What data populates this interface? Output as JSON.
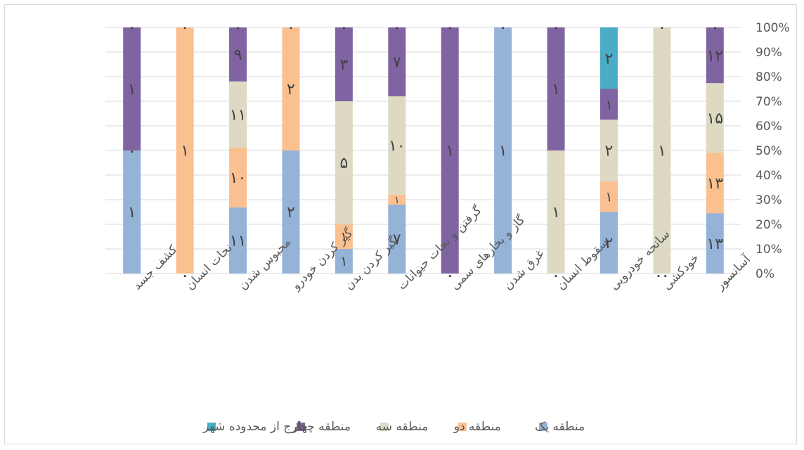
{
  "chart_data": {
    "type": "bar",
    "stacked": "percent",
    "categories": [
      "کشف جسد",
      "نجات انسان",
      "محبوس شدن",
      "گیر کردن خودرو",
      "گیر کردن بدن",
      "گرفتن و نجات حیوانات",
      "گاز و بخارهای سمی",
      "غرق شدن",
      "سقوط انسان",
      "سانحه خودرویی",
      "خودکشی",
      "آسانسور"
    ],
    "series": [
      {
        "name": "منطقه یک",
        "color": "#95b3d7",
        "values": [
          1,
          0,
          11,
          2,
          1,
          7,
          0,
          1,
          0,
          2,
          0,
          13
        ],
        "labels": [
          "۱",
          "۰",
          "۱۱",
          "۲",
          "۱",
          "۷",
          "۰",
          "۱",
          "۰",
          "۲",
          "۰",
          "۱۳"
        ]
      },
      {
        "name": "منطقه دو",
        "color": "#fac090",
        "values": [
          0,
          1,
          10,
          2,
          1,
          1,
          0,
          0,
          0,
          1,
          0,
          13
        ],
        "labels": [
          "",
          "۱",
          "۱۰",
          "۲",
          "۱",
          "۱",
          "",
          "",
          "",
          "۱",
          "",
          "۱۳"
        ]
      },
      {
        "name": "منطقه سه",
        "color": "#ddd9c3",
        "values": [
          0,
          0,
          11,
          0,
          5,
          10,
          0,
          0,
          1,
          2,
          1,
          15
        ],
        "labels": [
          "",
          "",
          "۱۱",
          "",
          "۵",
          "۱۰",
          "",
          "",
          "۱",
          "۲",
          "۱",
          "۱۵"
        ]
      },
      {
        "name": "منطقه چهار",
        "color": "#8064a2",
        "values": [
          1,
          0,
          9,
          0,
          3,
          7,
          1,
          0,
          1,
          1,
          0,
          12
        ],
        "labels": [
          "۱",
          "",
          "۹",
          "",
          "۳",
          "۷",
          "۱",
          "",
          "۱",
          "۱",
          "",
          "۱۲"
        ]
      },
      {
        "name": "خارج از محدوده شهر",
        "color": "#4bacc6",
        "values": [
          0,
          0,
          0,
          0,
          0,
          0,
          0,
          0,
          0,
          2,
          0,
          0
        ],
        "labels": [
          "",
          "",
          "",
          "",
          "",
          "",
          "",
          "",
          "",
          "۲",
          "",
          ""
        ]
      }
    ],
    "base_labels": [
      "",
      "۰",
      "",
      "",
      "",
      "",
      "۰",
      "",
      "۰",
      "",
      "۰۰",
      ""
    ],
    "middle_labels": [
      "۰",
      "",
      "",
      "",
      "",
      "",
      "",
      "",
      "",
      "",
      "",
      ""
    ],
    "top_labels": [
      "۰",
      "۰",
      "۰",
      "۰",
      "۰",
      "۰",
      "۰",
      "۰",
      "۰",
      "",
      "۰",
      "۰"
    ],
    "y_ticks": [
      "0%",
      "10%",
      "20%",
      "30%",
      "40%",
      "50%",
      "60%",
      "70%",
      "80%",
      "90%",
      "100%"
    ],
    "ylim": [
      0,
      100
    ],
    "grid": true,
    "legend_position": "bottom",
    "y_axis_side": "right"
  }
}
